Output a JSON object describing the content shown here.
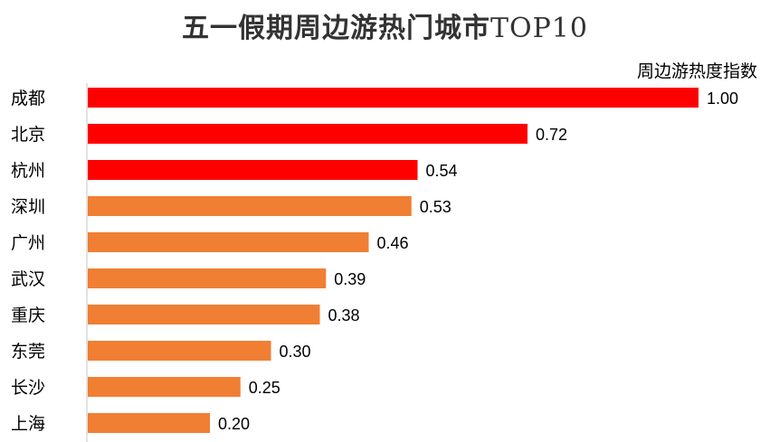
{
  "title_cn": "五一假期周边游热门城市",
  "title_latin": "TOP10",
  "index_label": "周边游热度指数",
  "colors": {
    "top3": "#ff0000",
    "rest": "#f07f33",
    "axis": "#d9d9d9",
    "text": "#000000"
  },
  "chart_data": {
    "type": "bar",
    "orientation": "horizontal",
    "title": "五一假期周边游热门城市TOP10",
    "xlabel": "周边游热度指数",
    "ylabel": "",
    "categories": [
      "成都",
      "北京",
      "杭州",
      "深圳",
      "广州",
      "武汉",
      "重庆",
      "东莞",
      "长沙",
      "上海"
    ],
    "values": [
      1.0,
      0.72,
      0.54,
      0.53,
      0.46,
      0.39,
      0.38,
      0.3,
      0.25,
      0.2
    ],
    "value_labels": [
      "1.00",
      "0.72",
      "0.54",
      "0.53",
      "0.46",
      "0.39",
      "0.38",
      "0.30",
      "0.25",
      "0.20"
    ],
    "highlight_count": 3,
    "xlim": [
      0,
      1.0
    ],
    "grid": false,
    "legend": "none"
  }
}
